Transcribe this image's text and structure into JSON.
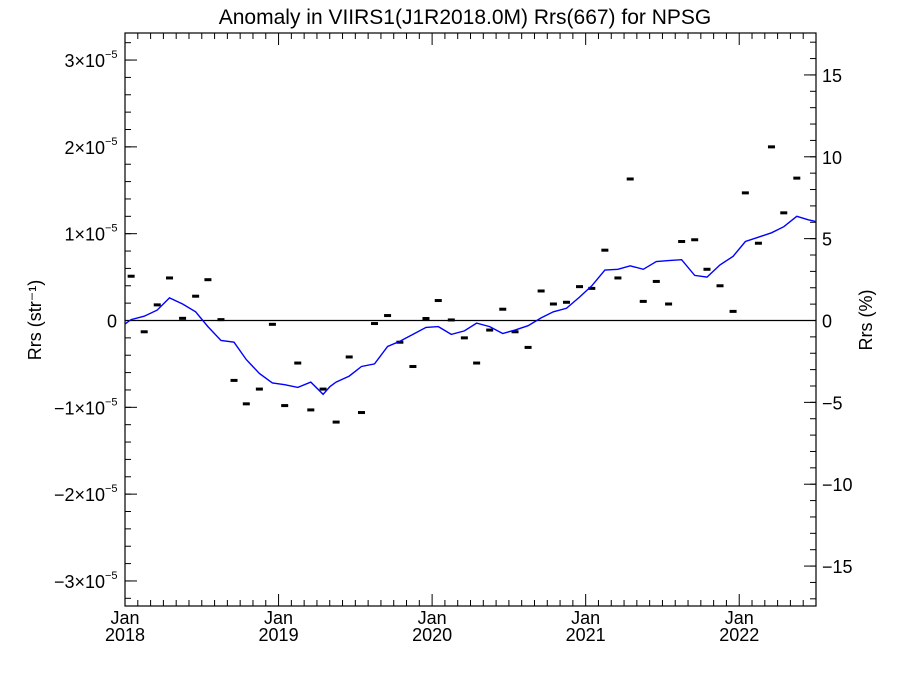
{
  "chart_data": {
    "type": "scatter+line",
    "title": "Anomaly in VIIRS1(J1R2018.0M) Rrs(667) for NPSG",
    "ylabel_left": "Rrs (str⁻¹)",
    "ylabel_right": "Rrs (%)",
    "xlabel": "",
    "xlim": [
      2018.0,
      2022.5
    ],
    "ylim_left": [
      -3.3e-05,
      3.3e-05
    ],
    "ylim_right": [
      -17.5,
      17.5
    ],
    "grid": false,
    "left_ticks": [
      {
        "value": 3e-05,
        "label": "3×10",
        "exp": "−5"
      },
      {
        "value": 2e-05,
        "label": "2×10",
        "exp": "−5"
      },
      {
        "value": 1e-05,
        "label": "1×10",
        "exp": "−5"
      },
      {
        "value": 0,
        "label": "0",
        "exp": ""
      },
      {
        "value": -1e-05,
        "label": "−1×10",
        "exp": "−5"
      },
      {
        "value": -2e-05,
        "label": "−2×10",
        "exp": "−5"
      },
      {
        "value": -3e-05,
        "label": "−3×10",
        "exp": "−5"
      }
    ],
    "right_ticks": [
      {
        "value": 15,
        "label": "15"
      },
      {
        "value": 10,
        "label": "10"
      },
      {
        "value": 5,
        "label": "5"
      },
      {
        "value": 0,
        "label": "0"
      },
      {
        "value": -5,
        "label": "−5"
      },
      {
        "value": -10,
        "label": "−10"
      },
      {
        "value": -15,
        "label": "−15"
      }
    ],
    "x_ticks": [
      {
        "value": 2018.0,
        "label1": "Jan",
        "label2": "2018"
      },
      {
        "value": 2019.0,
        "label1": "Jan",
        "label2": "2019"
      },
      {
        "value": 2020.0,
        "label1": "Jan",
        "label2": "2020"
      },
      {
        "value": 2021.0,
        "label1": "Jan",
        "label2": "2021"
      },
      {
        "value": 2022.0,
        "label1": "Jan",
        "label2": "2022"
      }
    ],
    "zero_line": true,
    "series": [
      {
        "kind": "markers",
        "color": "#000000",
        "x": [
          2018.04,
          2018.125,
          2018.21,
          2018.29,
          2018.375,
          2018.46,
          2018.54,
          2018.625,
          2018.71,
          2018.79,
          2018.875,
          2018.96,
          2019.04,
          2019.125,
          2019.21,
          2019.29,
          2019.375,
          2019.46,
          2019.54,
          2019.625,
          2019.71,
          2019.79,
          2019.875,
          2019.96,
          2020.04,
          2020.125,
          2020.21,
          2020.29,
          2020.375,
          2020.46,
          2020.54,
          2020.625,
          2020.71,
          2020.79,
          2020.875,
          2020.96,
          2021.04,
          2021.125,
          2021.21,
          2021.29,
          2021.375,
          2021.46,
          2021.54,
          2021.625,
          2021.71,
          2021.79,
          2021.875,
          2021.96,
          2022.04,
          2022.125,
          2022.21,
          2022.29,
          2022.375
        ],
        "y": [
          5.1e-06,
          -1.3e-06,
          1.8e-06,
          4.9e-06,
          2.5e-07,
          2.8e-06,
          4.7e-06,
          1e-07,
          -6.9e-06,
          -9.6e-06,
          -7.9e-06,
          -4.4e-07,
          -9.8e-06,
          -4.9e-06,
          -1.03e-05,
          -7.9e-06,
          -1.17e-05,
          -4.2e-06,
          -1.06e-05,
          -3.5e-07,
          5.7e-07,
          -2.5e-06,
          -5.3e-06,
          2.3e-07,
          2.3e-06,
          6.4e-08,
          -2e-06,
          -4.9e-06,
          -1.1e-06,
          1.3e-06,
          -1.3e-06,
          -3.1e-06,
          3.4e-06,
          1.9e-06,
          2.1e-06,
          3.9e-06,
          3.7e-06,
          8.1e-06,
          4.9e-06,
          1.63e-05,
          2.2e-06,
          4.5e-06,
          1.9e-06,
          9.1e-06,
          9.3e-06,
          5.9e-06,
          4e-06,
          1.05e-06,
          1.47e-05,
          8.9e-06,
          2e-05,
          1.24e-05,
          1.64e-05
        ]
      },
      {
        "kind": "line",
        "color": "#0000ff",
        "x": [
          2018.0,
          2018.04,
          2018.125,
          2018.21,
          2018.29,
          2018.375,
          2018.46,
          2018.54,
          2018.625,
          2018.71,
          2018.79,
          2018.875,
          2018.96,
          2019.04,
          2019.125,
          2019.21,
          2019.29,
          2019.335,
          2019.375,
          2019.46,
          2019.54,
          2019.625,
          2019.71,
          2019.79,
          2019.875,
          2019.96,
          2020.04,
          2020.125,
          2020.21,
          2020.29,
          2020.375,
          2020.46,
          2020.54,
          2020.625,
          2020.71,
          2020.79,
          2020.875,
          2020.96,
          2021.04,
          2021.125,
          2021.21,
          2021.29,
          2021.375,
          2021.46,
          2021.54,
          2021.625,
          2021.71,
          2021.79,
          2021.875,
          2021.96,
          2022.04,
          2022.125,
          2022.21,
          2022.29,
          2022.375,
          2022.45,
          2022.5
        ],
        "y": [
          -4e-07,
          1e-07,
          5e-07,
          1.2e-06,
          2.6e-06,
          1.9e-06,
          1e-06,
          -7e-07,
          -2.3e-06,
          -2.5e-06,
          -4.5e-06,
          -6.1e-06,
          -7.2e-06,
          -7.4e-06,
          -7.7e-06,
          -7.1e-06,
          -8.5e-06,
          -7.6e-06,
          -7.1e-06,
          -6.4e-06,
          -5.3e-06,
          -5e-06,
          -3e-06,
          -2.4e-06,
          -1.6e-06,
          -8e-07,
          -7e-07,
          -1.6e-06,
          -1.2e-06,
          -3e-07,
          -7e-07,
          -1.5e-06,
          -1.1e-06,
          -6e-07,
          3e-07,
          1e-06,
          1.4e-06,
          2.7e-06,
          4e-06,
          5.8e-06,
          5.9e-06,
          6.3e-06,
          5.9e-06,
          6.8e-06,
          6.9e-06,
          7e-06,
          5.2e-06,
          5e-06,
          6.4e-06,
          7.4e-06,
          9.1e-06,
          9.6e-06,
          1.01e-05,
          1.08e-05,
          1.2e-05,
          1.16e-05,
          1.14e-05
        ]
      }
    ]
  }
}
